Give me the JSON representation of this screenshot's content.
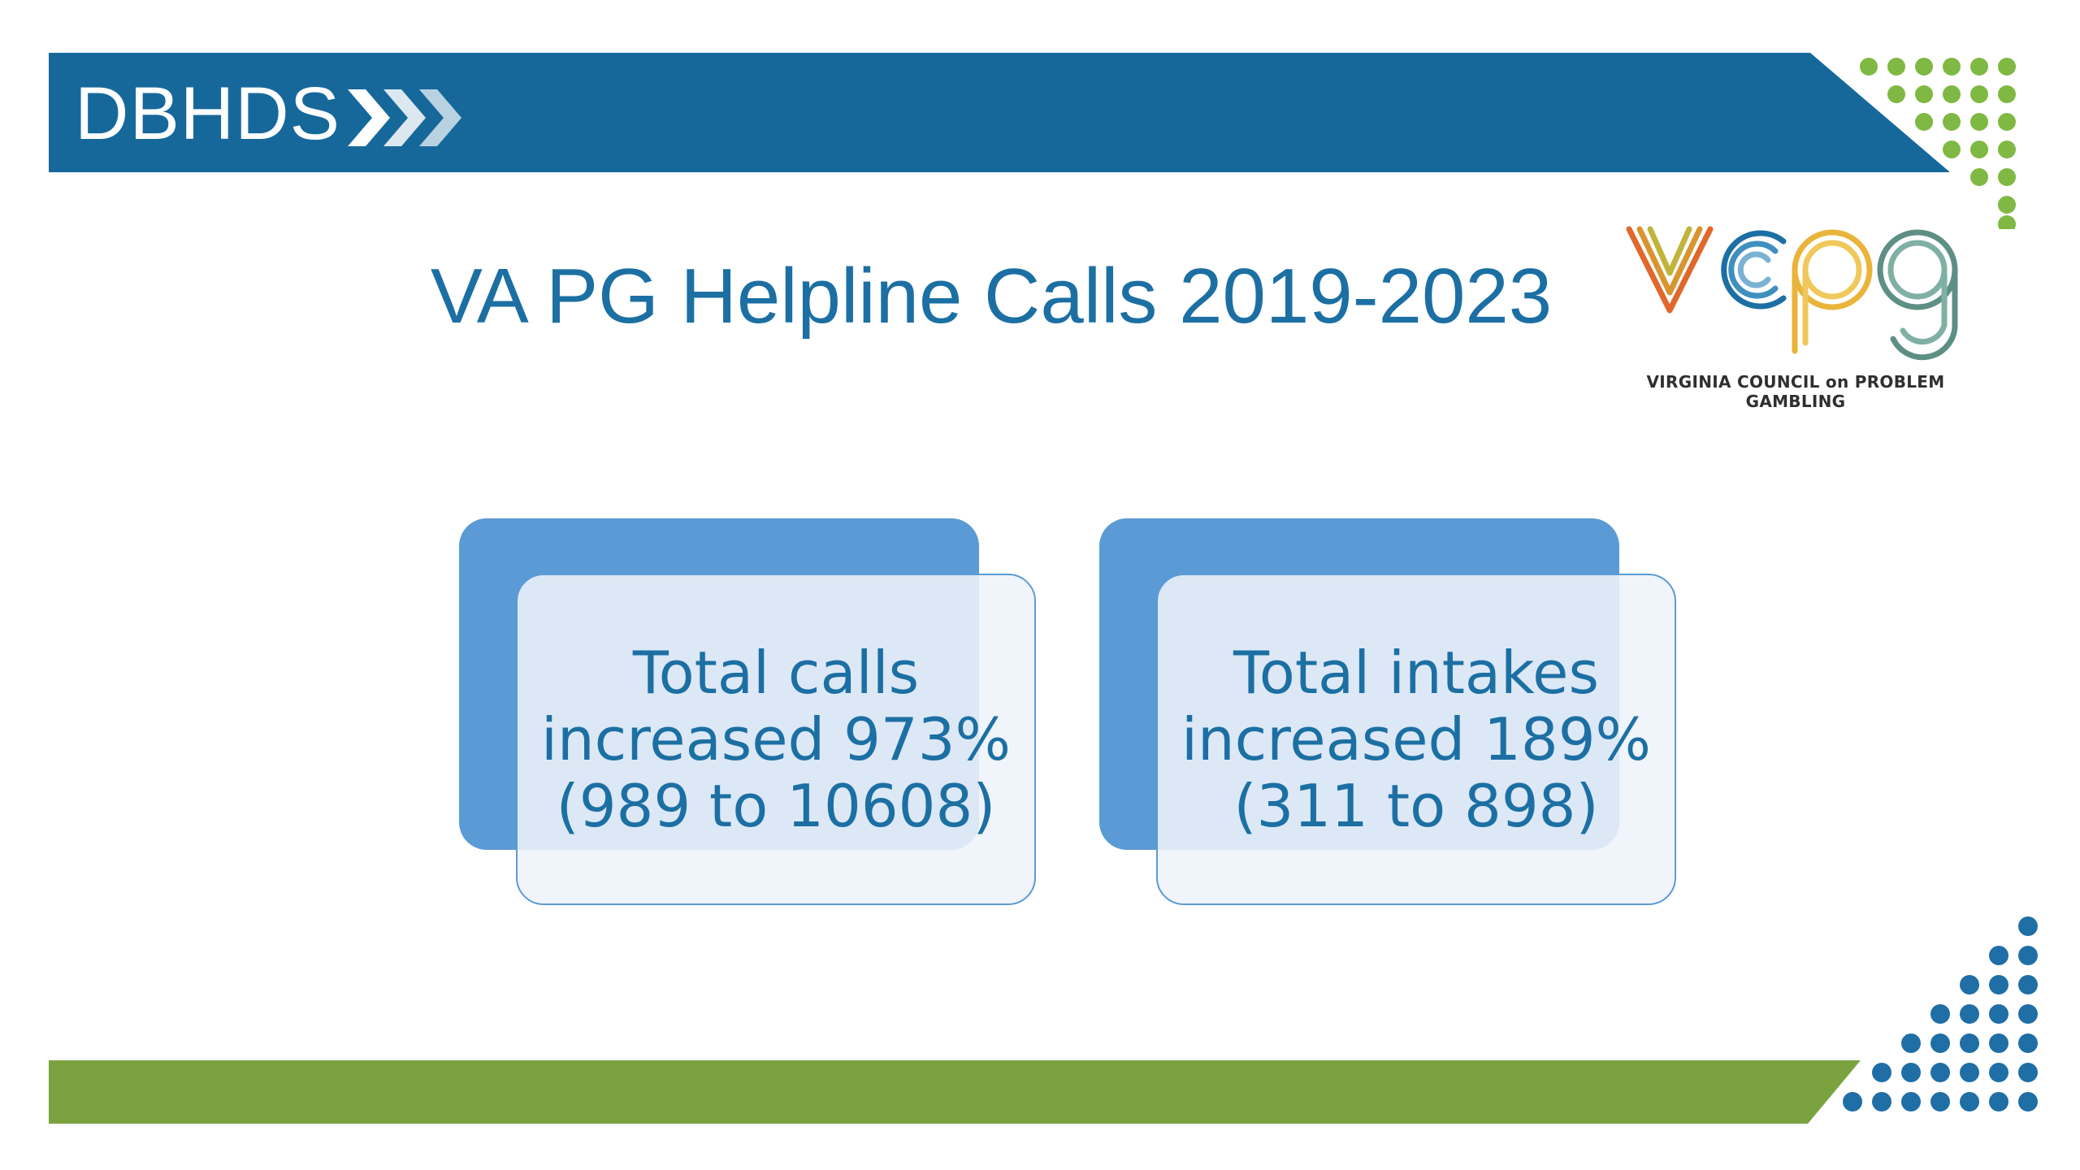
{
  "header": {
    "brand": "DBHDS",
    "accent_color": "#1c6fa3"
  },
  "title": "VA PG Helpline Calls 2019-2023",
  "logo": {
    "wordmark": "vcpg",
    "caption": "VIRGINIA COUNCIL on PROBLEM GAMBLING"
  },
  "cards": [
    {
      "line1": "Total calls",
      "line2": "increased 973%",
      "line3": "(989 to 10608)"
    },
    {
      "line1": "Total intakes",
      "line2": "increased 189%",
      "line3": "(311 to 898)"
    }
  ],
  "colors": {
    "header_blue": "#16689b",
    "card_blue": "#5b9bd5",
    "footer_green": "#7aa33f",
    "dot_green": "#7fb842",
    "dot_blue": "#1f6ea6"
  }
}
